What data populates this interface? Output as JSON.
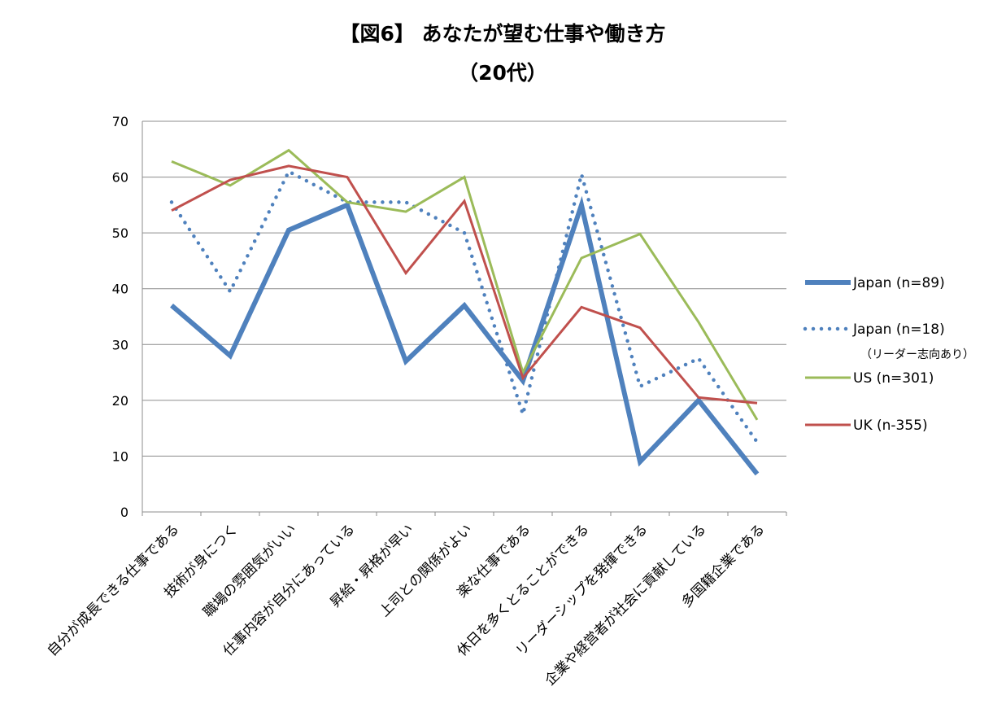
{
  "chart_data": {
    "type": "line",
    "title": "【図6】 あなたが望む仕事や働き方",
    "subtitle": "（20代）",
    "xlabel": "",
    "ylabel": "",
    "ylim": [
      0,
      70
    ],
    "yticks": [
      0,
      10,
      20,
      30,
      40,
      50,
      60,
      70
    ],
    "grid": true,
    "legend_position": "right",
    "categories": [
      "自分が成長できる仕事である",
      "技術が身につく",
      "職場の雰囲気がいい",
      "仕事内容が自分にあっている",
      "昇給・昇格が早い",
      "上司との関係がよい",
      "楽な仕事である",
      "休日を多くとることができる",
      "リーダーシップを発揮できる",
      "企業や経営者が社会に貢献している",
      "多国籍企業である"
    ],
    "series": [
      {
        "name": "Japan (n=89)",
        "note": "",
        "color": "#4F81BD",
        "style": "thick",
        "values": [
          37,
          28,
          50.5,
          55,
          27,
          37,
          23.5,
          55,
          9,
          20,
          6.8
        ]
      },
      {
        "name": "Japan (n=18)",
        "note": "（リーダー志向あり）",
        "color": "#4F81BD",
        "style": "dotted",
        "values": [
          55.5,
          39.5,
          61,
          55.5,
          55.5,
          50,
          17.5,
          60.5,
          22.5,
          27.5,
          12.5
        ]
      },
      {
        "name": "US (n=301)",
        "note": "",
        "color": "#9BBB59",
        "style": "solid",
        "values": [
          62.8,
          58.5,
          64.8,
          55.5,
          53.8,
          60,
          25,
          45.5,
          49.8,
          34,
          16.5
        ]
      },
      {
        "name": "UK (n-355)",
        "note": "",
        "color": "#C0504D",
        "style": "solid",
        "values": [
          54,
          59.5,
          62,
          60,
          42.8,
          55.7,
          24,
          36.7,
          33,
          20.5,
          19.5
        ]
      }
    ]
  }
}
